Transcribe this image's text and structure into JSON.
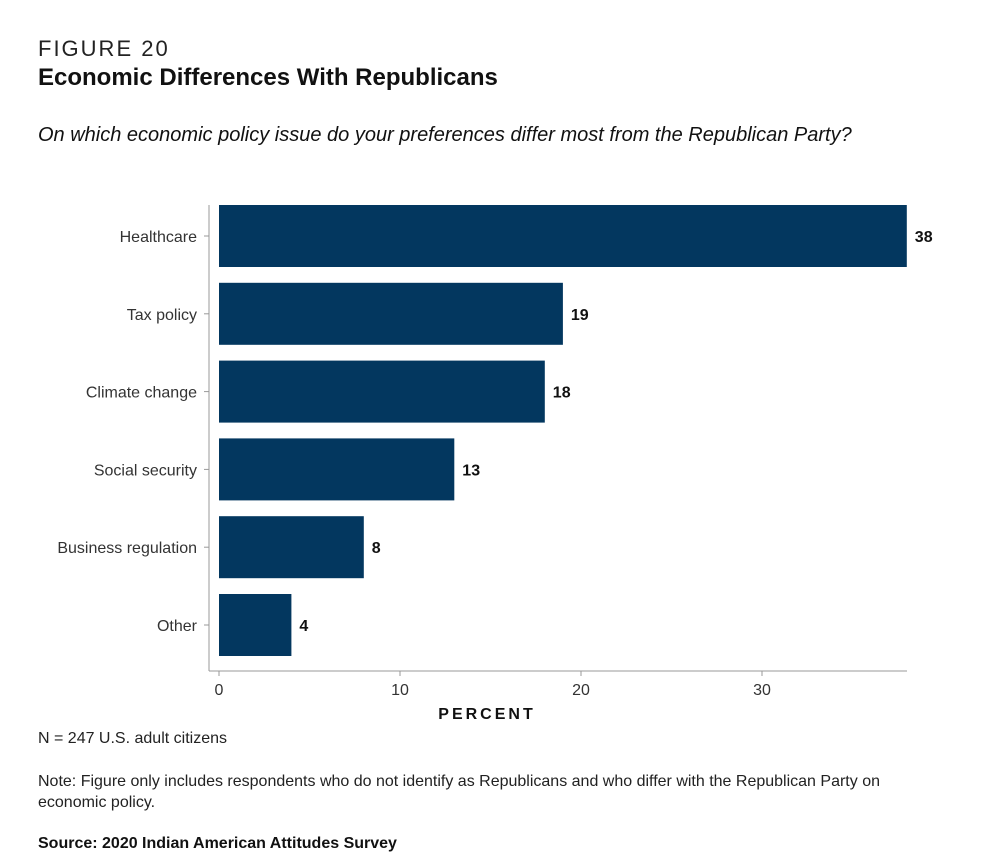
{
  "figure_label": "FIGURE 20",
  "title": "Economic Differences With Republicans",
  "subtitle": "On which economic policy issue do your preferences differ most from the Republican Party?",
  "chart_data": {
    "type": "bar",
    "orientation": "horizontal",
    "categories": [
      "Healthcare",
      "Tax policy",
      "Climate change",
      "Social security",
      "Business regulation",
      "Other"
    ],
    "values": [
      38,
      19,
      18,
      13,
      8,
      4
    ],
    "value_labels": [
      "38",
      "19",
      "18",
      "13",
      "8",
      "4"
    ],
    "xlabel": "PERCENT",
    "xlim": [
      0,
      38
    ],
    "xticks": [
      0,
      10,
      20,
      30
    ],
    "grid": false,
    "bar_color": "#03375f"
  },
  "n_note": "N = 247 U.S. adult citizens",
  "note": "Note: Figure only includes respondents who do not identify as Republicans and who differ with the Republican Party on economic policy.",
  "source": "Source: 2020 Indian American Attitudes Survey"
}
